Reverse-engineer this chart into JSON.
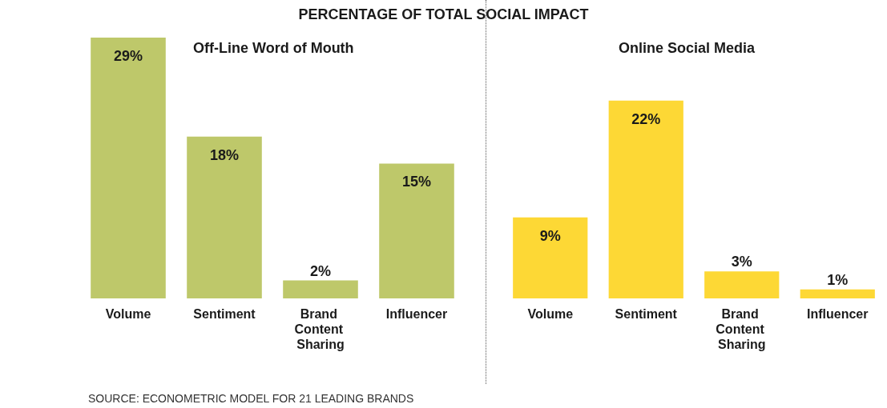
{
  "chart_data": [
    {
      "type": "bar",
      "title": "PERCENTAGE OF TOTAL SOCIAL IMPACT",
      "subtitle": "Off-Line Word of Mouth",
      "categories": [
        "Volume",
        "Sentiment",
        "Brand Content Sharing",
        "Influencer"
      ],
      "values": [
        29,
        18,
        2,
        15
      ],
      "value_labels": [
        "29%",
        "18%",
        "2%",
        "15%"
      ],
      "color": "#bec86a"
    },
    {
      "type": "bar",
      "subtitle": "Online Social Media",
      "categories": [
        "Volume",
        "Sentiment",
        "Brand Content Sharing",
        "Influencer"
      ],
      "values": [
        9,
        22,
        3,
        1
      ],
      "value_labels": [
        "9%",
        "22%",
        "3%",
        "1%"
      ],
      "color": "#fdd835",
      "annotations": [
        "SOURCE: ECONOMETRIC MODEL FOR 21 LEADING BRANDS"
      ]
    }
  ]
}
